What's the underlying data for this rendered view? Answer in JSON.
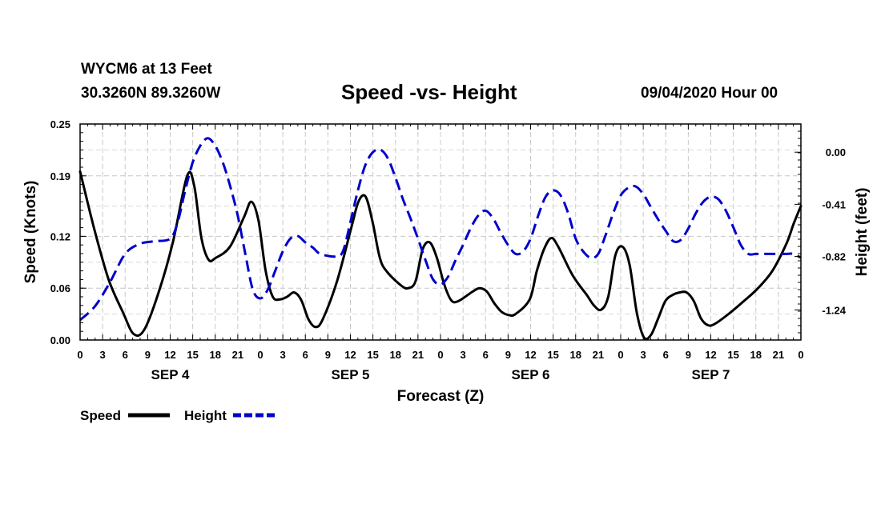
{
  "header": {
    "station": "WYCM6 at 13 Feet",
    "coords": "30.3260N 89.3260W",
    "title": "Speed -vs- Height",
    "datetime": "09/04/2020 Hour 00"
  },
  "chart_data": {
    "type": "line",
    "title": "Speed -vs- Height",
    "xlabel": "Forecast (Z)",
    "ylabel_left": "Speed (Knots)",
    "ylabel_right": "Height (feet)",
    "x_hours": [
      0,
      3,
      6,
      9,
      12,
      15,
      18,
      21,
      24,
      27,
      30,
      33,
      36,
      39,
      42,
      45,
      48,
      51,
      54,
      57,
      60,
      63,
      66,
      69,
      72,
      75,
      78,
      81,
      84,
      87,
      90,
      93,
      96
    ],
    "x_tick_labels": [
      "0",
      "3",
      "6",
      "9",
      "12",
      "15",
      "18",
      "21",
      "0",
      "3",
      "6",
      "9",
      "12",
      "15",
      "18",
      "21",
      "0",
      "3",
      "6",
      "9",
      "12",
      "15",
      "18",
      "21",
      "0",
      "3",
      "6",
      "9",
      "12",
      "15",
      "18",
      "21",
      "0"
    ],
    "day_labels": [
      {
        "label": "SEP 4",
        "hour": 12
      },
      {
        "label": "SEP 5",
        "hour": 36
      },
      {
        "label": "SEP 6",
        "hour": 60
      },
      {
        "label": "SEP 7",
        "hour": 84
      }
    ],
    "left_axis": {
      "ylim": [
        0.0,
        0.25
      ],
      "ticks": [
        0.0,
        0.06,
        0.12,
        0.19,
        0.25
      ],
      "tick_labels": [
        "0.00",
        "0.06",
        "0.12",
        "0.19",
        "0.25"
      ]
    },
    "right_axis": {
      "ylim": [
        -1.4769,
        0.2215
      ],
      "ticks": [
        0.0,
        -0.41,
        -0.82,
        -1.24
      ],
      "tick_labels": [
        "0.00",
        "-0.41",
        "-0.82",
        "-1.24"
      ]
    },
    "grid": true,
    "series": [
      {
        "name": "Speed",
        "axis": "left",
        "color": "#000000",
        "dash": "solid",
        "points": [
          [
            0,
            0.195
          ],
          [
            2,
            0.128
          ],
          [
            4,
            0.07
          ],
          [
            6,
            0.032
          ],
          [
            7.5,
            0.007
          ],
          [
            9,
            0.012
          ],
          [
            11,
            0.055
          ],
          [
            13,
            0.113
          ],
          [
            15,
            0.19
          ],
          [
            16,
            0.178
          ],
          [
            17,
            0.118
          ],
          [
            18,
            0.093
          ],
          [
            19,
            0.095
          ],
          [
            21,
            0.108
          ],
          [
            23,
            0.143
          ],
          [
            24,
            0.16
          ],
          [
            25,
            0.138
          ],
          [
            26,
            0.08
          ],
          [
            27,
            0.05
          ],
          [
            28,
            0.047
          ],
          [
            29,
            0.05
          ],
          [
            30,
            0.055
          ],
          [
            31,
            0.046
          ],
          [
            32,
            0.024
          ],
          [
            33,
            0.015
          ],
          [
            34,
            0.024
          ],
          [
            36,
            0.068
          ],
          [
            38,
            0.13
          ],
          [
            39,
            0.16
          ],
          [
            40,
            0.166
          ],
          [
            41,
            0.136
          ],
          [
            42,
            0.095
          ],
          [
            43,
            0.079
          ],
          [
            45,
            0.063
          ],
          [
            46,
            0.06
          ],
          [
            47,
            0.068
          ],
          [
            48,
            0.105
          ],
          [
            49,
            0.113
          ],
          [
            50,
            0.095
          ],
          [
            51,
            0.065
          ],
          [
            52,
            0.046
          ],
          [
            53,
            0.045
          ],
          [
            55,
            0.056
          ],
          [
            56,
            0.06
          ],
          [
            57,
            0.056
          ],
          [
            58,
            0.043
          ],
          [
            59,
            0.033
          ],
          [
            60,
            0.029
          ],
          [
            61,
            0.03
          ],
          [
            63,
            0.047
          ],
          [
            64,
            0.08
          ],
          [
            65,
            0.105
          ],
          [
            66,
            0.118
          ],
          [
            67,
            0.108
          ],
          [
            69,
            0.075
          ],
          [
            71,
            0.052
          ],
          [
            72,
            0.04
          ],
          [
            73,
            0.035
          ],
          [
            74,
            0.05
          ],
          [
            75,
            0.098
          ],
          [
            76,
            0.108
          ],
          [
            77,
            0.087
          ],
          [
            78,
            0.032
          ],
          [
            79,
            0.003
          ],
          [
            80,
            0.006
          ],
          [
            81,
            0.025
          ],
          [
            82,
            0.045
          ],
          [
            83,
            0.052
          ],
          [
            84,
            0.055
          ],
          [
            85,
            0.055
          ],
          [
            86,
            0.045
          ],
          [
            87,
            0.025
          ],
          [
            88,
            0.017
          ],
          [
            89,
            0.019
          ],
          [
            91,
            0.031
          ],
          [
            93,
            0.045
          ],
          [
            95,
            0.06
          ],
          [
            97,
            0.08
          ],
          [
            99,
            0.112
          ],
          [
            100,
            0.135
          ],
          [
            101,
            0.155
          ]
        ]
      },
      {
        "name": "Height",
        "axis": "right",
        "color": "#0000cc",
        "dash": "dashed",
        "points": [
          [
            0,
            -1.32
          ],
          [
            2,
            -1.21
          ],
          [
            4,
            -1.02
          ],
          [
            6,
            -0.8
          ],
          [
            8,
            -0.72
          ],
          [
            10,
            -0.7
          ],
          [
            12,
            -0.68
          ],
          [
            13,
            -0.55
          ],
          [
            14,
            -0.3
          ],
          [
            15,
            -0.08
          ],
          [
            16,
            0.05
          ],
          [
            17,
            0.11
          ],
          [
            18,
            0.05
          ],
          [
            19,
            -0.08
          ],
          [
            20,
            -0.27
          ],
          [
            21,
            -0.5
          ],
          [
            22,
            -0.8
          ],
          [
            23,
            -1.08
          ],
          [
            24,
            -1.15
          ],
          [
            25,
            -1.08
          ],
          [
            26,
            -0.93
          ],
          [
            27,
            -0.78
          ],
          [
            28,
            -0.68
          ],
          [
            29,
            -0.66
          ],
          [
            30,
            -0.71
          ],
          [
            31,
            -0.75
          ],
          [
            32,
            -0.8
          ],
          [
            34,
            -0.82
          ],
          [
            35,
            -0.78
          ],
          [
            36,
            -0.55
          ],
          [
            37,
            -0.3
          ],
          [
            38,
            -0.1
          ],
          [
            39,
            0.0
          ],
          [
            40,
            0.02
          ],
          [
            41,
            -0.05
          ],
          [
            42,
            -0.2
          ],
          [
            43,
            -0.37
          ],
          [
            44,
            -0.52
          ],
          [
            45,
            -0.68
          ],
          [
            46,
            -0.85
          ],
          [
            47,
            -1.0
          ],
          [
            48,
            -1.04
          ],
          [
            49,
            -0.98
          ],
          [
            50,
            -0.85
          ],
          [
            51,
            -0.73
          ],
          [
            52,
            -0.6
          ],
          [
            53,
            -0.5
          ],
          [
            54,
            -0.46
          ],
          [
            55,
            -0.52
          ],
          [
            56,
            -0.63
          ],
          [
            57,
            -0.73
          ],
          [
            58,
            -0.8
          ],
          [
            59,
            -0.78
          ],
          [
            60,
            -0.68
          ],
          [
            61,
            -0.5
          ],
          [
            62,
            -0.35
          ],
          [
            63,
            -0.3
          ],
          [
            64,
            -0.34
          ],
          [
            65,
            -0.48
          ],
          [
            66,
            -0.68
          ],
          [
            67,
            -0.78
          ],
          [
            68,
            -0.83
          ],
          [
            69,
            -0.8
          ],
          [
            70,
            -0.65
          ],
          [
            71,
            -0.48
          ],
          [
            72,
            -0.34
          ],
          [
            73,
            -0.28
          ],
          [
            74,
            -0.27
          ],
          [
            75,
            -0.33
          ],
          [
            76,
            -0.43
          ],
          [
            77,
            -0.53
          ],
          [
            78,
            -0.62
          ],
          [
            79,
            -0.7
          ],
          [
            80,
            -0.69
          ],
          [
            81,
            -0.6
          ],
          [
            82,
            -0.48
          ],
          [
            83,
            -0.39
          ],
          [
            84,
            -0.35
          ],
          [
            85,
            -0.37
          ],
          [
            86,
            -0.46
          ],
          [
            87,
            -0.59
          ],
          [
            88,
            -0.73
          ],
          [
            89,
            -0.8
          ],
          [
            90,
            -0.8
          ],
          [
            91,
            -0.8
          ],
          [
            92,
            -0.8
          ],
          [
            93,
            -0.8
          ],
          [
            94,
            -0.8
          ],
          [
            95,
            -0.8
          ],
          [
            96,
            -0.83
          ]
        ]
      }
    ],
    "legend": {
      "placement": "bottom-left",
      "entries": [
        "Speed",
        "Height"
      ]
    }
  }
}
